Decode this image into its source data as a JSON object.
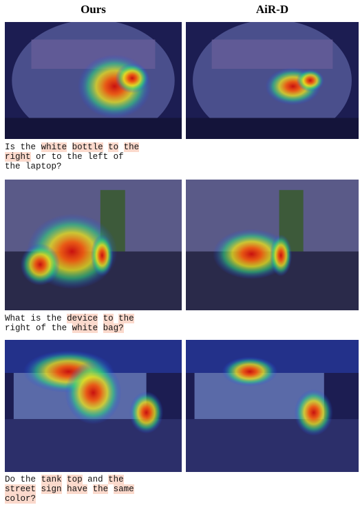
{
  "headers": [
    "Ours",
    "AiR-D"
  ],
  "rows": [
    {
      "question": [
        [
          {
            "text": "Is",
            "highlight": false
          },
          {
            "text": "the",
            "highlight": false
          },
          {
            "text": "white",
            "highlight": true
          },
          {
            "text": "bottle",
            "highlight": true
          },
          {
            "text": "to",
            "highlight": true
          },
          {
            "text": "the",
            "highlight": true
          }
        ],
        [
          {
            "text": "right",
            "highlight": true
          },
          {
            "text": "or",
            "highlight": false
          },
          {
            "text": "to",
            "highlight": false
          },
          {
            "text": "the",
            "highlight": false
          },
          {
            "text": "left",
            "highlight": false
          },
          {
            "text": "of",
            "highlight": false
          }
        ],
        [
          {
            "text": "the",
            "highlight": false
          },
          {
            "text": "laptop?",
            "highlight": false
          }
        ]
      ]
    },
    {
      "question": [
        [
          {
            "text": "What",
            "highlight": false
          },
          {
            "text": "is",
            "highlight": false
          },
          {
            "text": "the",
            "highlight": false
          },
          {
            "text": "device",
            "highlight": true
          },
          {
            "text": "to",
            "highlight": true
          },
          {
            "text": "the",
            "highlight": true
          }
        ],
        [
          {
            "text": "right",
            "highlight": false
          },
          {
            "text": "of",
            "highlight": false
          },
          {
            "text": "the",
            "highlight": false
          },
          {
            "text": "white",
            "highlight": true
          },
          {
            "text": "bag?",
            "highlight": true
          }
        ]
      ]
    },
    {
      "question": [
        [
          {
            "text": "Do",
            "highlight": false
          },
          {
            "text": "the",
            "highlight": false
          },
          {
            "text": "tank",
            "highlight": true
          },
          {
            "text": "top",
            "highlight": true
          },
          {
            "text": "and",
            "highlight": false
          },
          {
            "text": "the",
            "highlight": true
          }
        ],
        [
          {
            "text": "street",
            "highlight": true
          },
          {
            "text": "sign",
            "highlight": true
          },
          {
            "text": "have",
            "highlight": true
          },
          {
            "text": "the",
            "highlight": true
          },
          {
            "text": "same",
            "highlight": true
          }
        ],
        [
          {
            "text": "color?",
            "highlight": true
          }
        ]
      ]
    }
  ]
}
